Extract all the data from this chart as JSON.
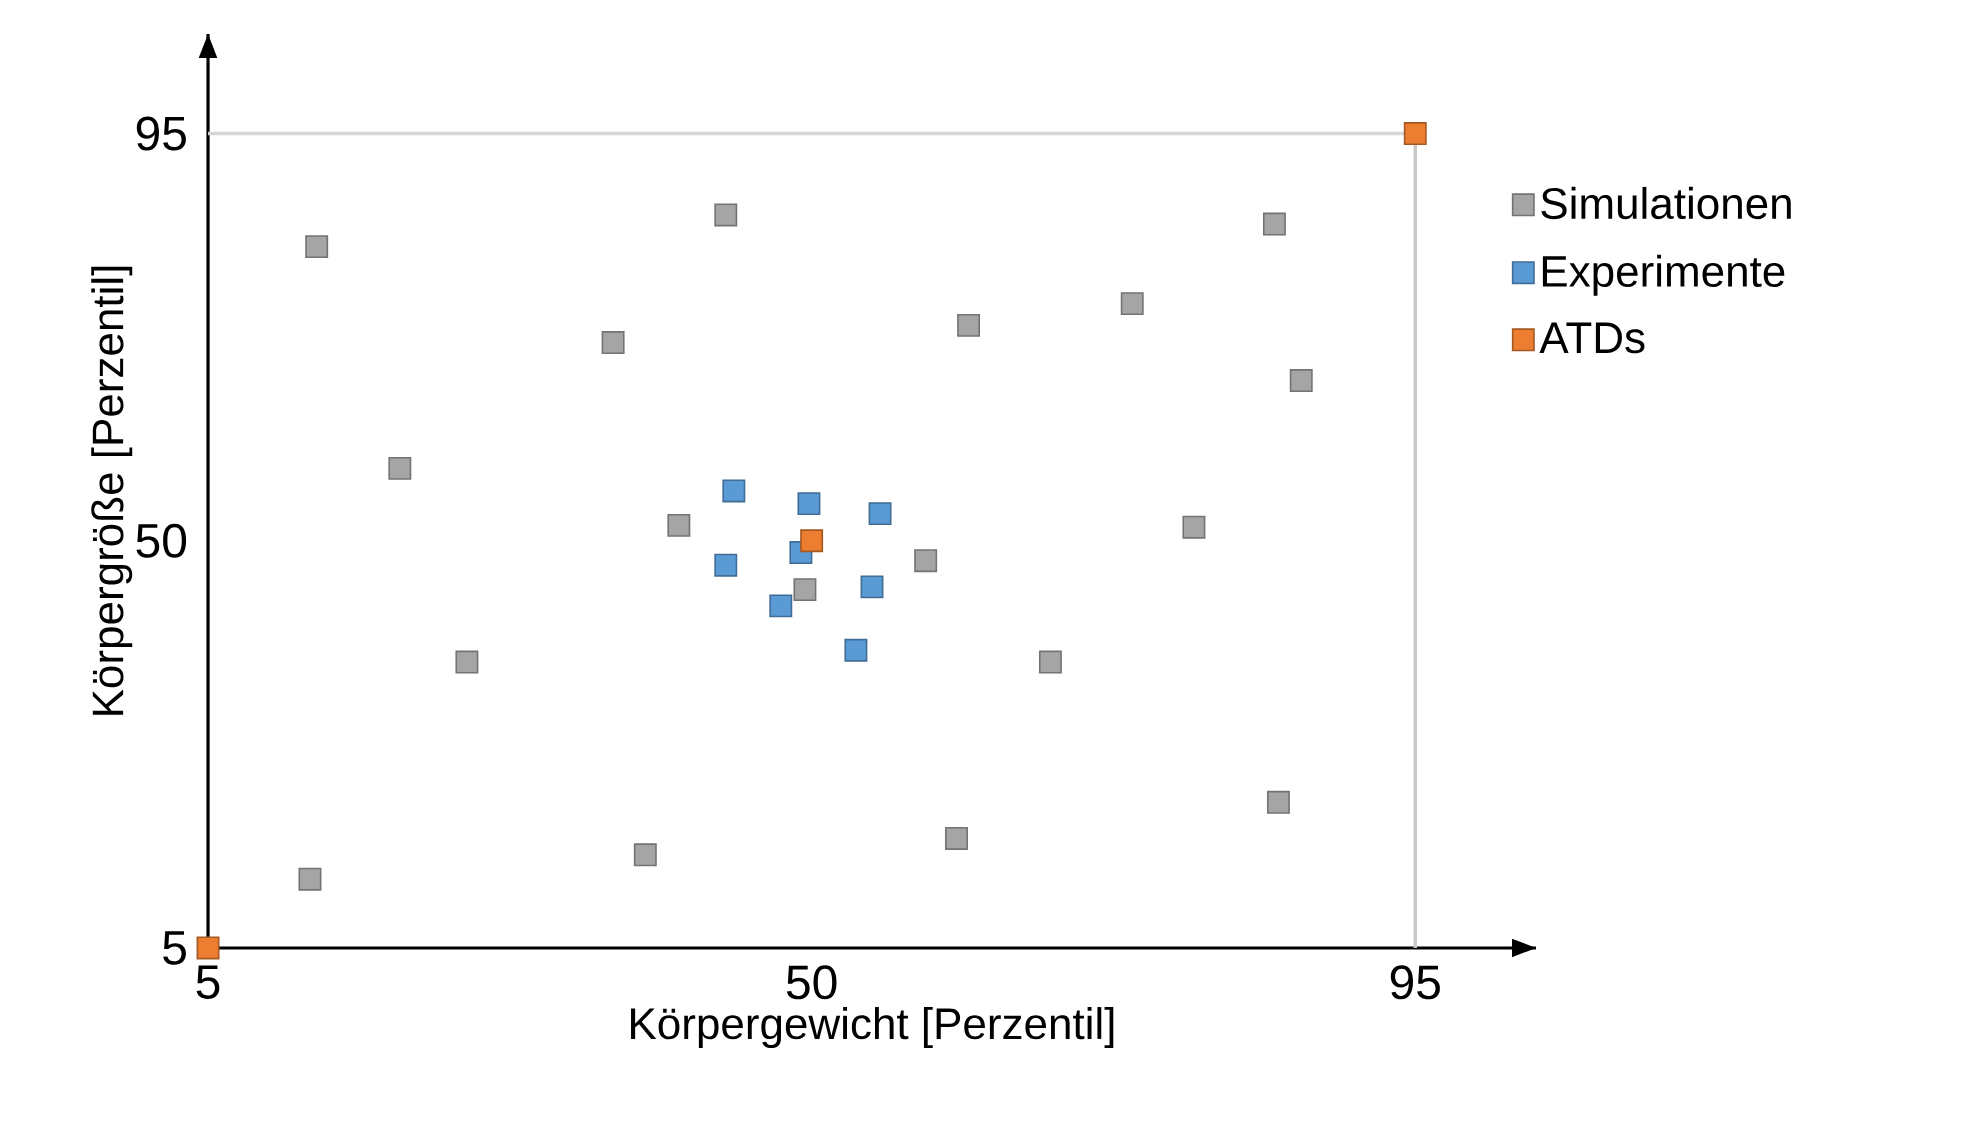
{
  "chart_data": {
    "type": "scatter",
    "xlabel": "Körpergewicht [Perzentil]",
    "ylabel": "Körpergröße [Perzentil]",
    "xlim": [
      5,
      104
    ],
    "ylim": [
      5,
      106
    ],
    "xticks": [
      5,
      50,
      95
    ],
    "yticks": [
      5,
      50,
      95
    ],
    "marker": "square",
    "legend": "right",
    "grid": false,
    "ref_lines": [
      {
        "axis": "x",
        "value": 95,
        "color": "#c8c8c8"
      },
      {
        "axis": "y",
        "value": 95,
        "color": "#d6d6d6"
      }
    ],
    "series": [
      {
        "name": "Simulationen",
        "color": "#a5a5a5",
        "x": [
          13.1,
          43.6,
          35.2,
          19.3,
          40.1,
          24.3,
          12.6,
          37.6,
          49.5,
          58.5,
          61.7,
          73.9,
          67.8,
          78.5,
          84.5,
          86.5,
          84.8,
          60.8
        ],
        "values": [
          82.5,
          86,
          71.9,
          58,
          51.7,
          36.6,
          12.6,
          15.3,
          44.6,
          47.8,
          73.8,
          76.2,
          36.6,
          51.5,
          85,
          67.7,
          21.1,
          17.1
        ]
      },
      {
        "name": "Experimente",
        "color": "#5b9bd5",
        "x": [
          44.2,
          49.8,
          55.1,
          43.6,
          49.2,
          47.7,
          54.5,
          53.3
        ],
        "values": [
          55.5,
          54.1,
          53,
          47.3,
          48.7,
          42.8,
          44.9,
          37.9
        ]
      },
      {
        "name": "ATDs",
        "color": "#ed7d31",
        "x": [
          5,
          50,
          95
        ],
        "values": [
          5,
          50,
          95
        ]
      }
    ]
  }
}
